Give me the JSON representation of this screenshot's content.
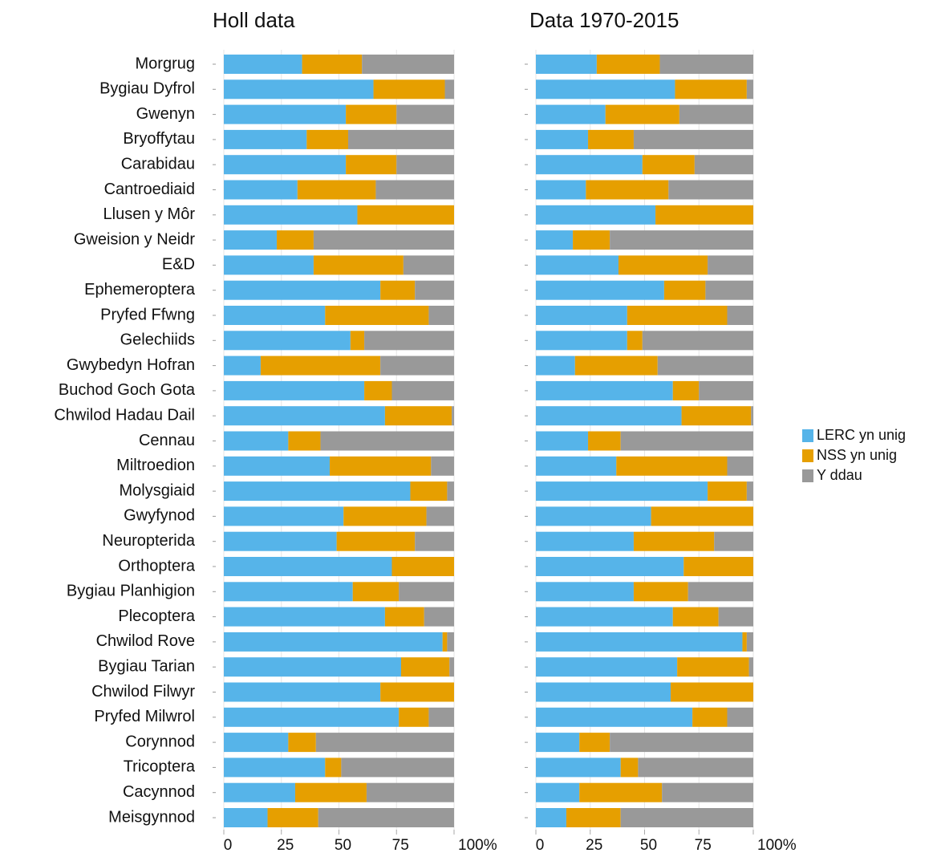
{
  "chart_data": [
    {
      "type": "stacked-bar-horizontal",
      "title": "Holl data",
      "categories": [
        "Morgrug",
        "Bygiau Dyfrol",
        "Gwenyn",
        "Bryoffytau",
        "Carabidau",
        "Cantroediaid",
        "Llusen y Môr",
        "Gweision y Neidr",
        "E&D",
        "Ephemeroptera",
        "Pryfed Ffwng",
        "Gelechiids",
        "Gwybedyn Hofran",
        "Buchod Goch Gota",
        "Chwilod Hadau Dail",
        "Cennau",
        "Miltroedion",
        "Molysgiaid",
        "Gwyfynod",
        "Neuropterida",
        "Orthoptera",
        "Bygiau Planhigion",
        "Plecoptera",
        "Chwilod Rove",
        "Bygiau Tarian",
        "Chwilod Filwyr",
        "Pryfed Milwrol",
        "Corynnod",
        "Tricoptera",
        "Cacynnod",
        "Meisgynnod"
      ],
      "series": [
        {
          "name": "LERC yn unig",
          "color": "#56b4e9",
          "values": [
            34,
            65,
            53,
            36,
            53,
            32,
            58,
            23,
            39,
            68,
            44,
            55,
            16,
            61,
            70,
            28,
            46,
            81,
            52,
            49,
            73,
            56,
            70,
            95,
            77,
            68,
            76,
            28,
            44,
            31,
            19
          ]
        },
        {
          "name": "NSS yn unig",
          "color": "#e69f00",
          "values": [
            26,
            31,
            22,
            18,
            22,
            34,
            42,
            16,
            39,
            15,
            45,
            6,
            52,
            12,
            29,
            14,
            44,
            16,
            36,
            34,
            27,
            20,
            17,
            2,
            21,
            32,
            13,
            12,
            7,
            31,
            22
          ]
        },
        {
          "name": "Y ddau",
          "color": "#999999",
          "values": [
            40,
            4,
            25,
            46,
            25,
            34,
            0,
            61,
            22,
            17,
            11,
            39,
            32,
            27,
            1,
            58,
            10,
            3,
            12,
            17,
            0,
            24,
            13,
            3,
            2,
            0,
            11,
            60,
            49,
            38,
            59
          ]
        }
      ],
      "xlim": [
        0,
        100
      ],
      "xticks": [
        0,
        25,
        50,
        75,
        {
          "value": 100,
          "label": "100%"
        }
      ],
      "grid": true
    },
    {
      "type": "stacked-bar-horizontal",
      "title": "Data 1970-2015",
      "series": [
        {
          "values": [
            28,
            64,
            32,
            24,
            49,
            23,
            55,
            17,
            38,
            59,
            42,
            42,
            18,
            63,
            67,
            24,
            37,
            79,
            53,
            45,
            68,
            45,
            63,
            95,
            65,
            62,
            72,
            20,
            39,
            20,
            14
          ]
        },
        {
          "values": [
            29,
            33,
            34,
            21,
            24,
            38,
            45,
            17,
            41,
            19,
            46,
            7,
            38,
            12,
            32,
            15,
            51,
            18,
            47,
            37,
            32,
            25,
            21,
            2,
            33,
            38,
            16,
            14,
            8,
            38,
            25
          ]
        },
        {
          "values": [
            43,
            3,
            34,
            55,
            27,
            39,
            0,
            66,
            21,
            22,
            12,
            51,
            44,
            25,
            1,
            61,
            12,
            3,
            0,
            18,
            0,
            30,
            16,
            3,
            2,
            0,
            12,
            66,
            53,
            42,
            61
          ]
        }
      ],
      "xlim": [
        0,
        100
      ],
      "xticks": [
        0,
        25,
        50,
        75,
        {
          "value": 100,
          "label": "100%"
        }
      ],
      "grid": true
    }
  ]
}
